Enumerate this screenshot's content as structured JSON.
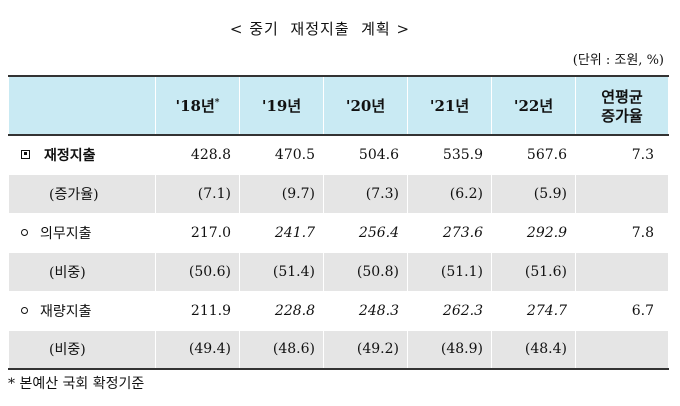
{
  "title": "< 중기  재정지출  계획 >",
  "unit": "(단위 : 조원, %)",
  "header": {
    "first": "",
    "years": [
      "'18년",
      "'19년",
      "'20년",
      "'21년",
      "'22년"
    ],
    "year_mark": "*",
    "last_line1": "연평균",
    "last_line2": "증가율"
  },
  "rows": [
    {
      "label": "재정지출",
      "values": [
        "428.8",
        "470.5",
        "504.6",
        "535.9",
        "567.6"
      ],
      "last": "7.3"
    },
    {
      "label": "(증가율)",
      "values": [
        "(7.1)",
        "(9.7)",
        "(7.3)",
        "(6.2)",
        "(5.9)"
      ],
      "last": ""
    },
    {
      "label": "의무지출",
      "values": [
        "217.0",
        "241.7",
        "256.4",
        "273.6",
        "292.9"
      ],
      "last": "7.8"
    },
    {
      "label": "(비중)",
      "values": [
        "(50.6)",
        "(51.4)",
        "(50.8)",
        "(51.1)",
        "(51.6)"
      ],
      "last": ""
    },
    {
      "label": "재량지출",
      "values": [
        "211.9",
        "228.8",
        "248.3",
        "262.3",
        "274.7"
      ],
      "last": "6.7"
    },
    {
      "label": "(비중)",
      "values": [
        "(49.4)",
        "(48.6)",
        "(49.2)",
        "(48.9)",
        "(48.4)"
      ],
      "last": ""
    }
  ],
  "footnote": "* 본예산 국회 확정기준"
}
